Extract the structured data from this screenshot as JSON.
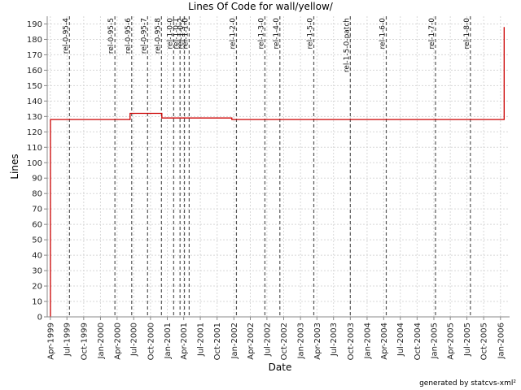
{
  "chart_data": {
    "type": "line",
    "title": "Lines Of Code for wall/yellow/",
    "xlabel": "Date",
    "ylabel": "Lines",
    "credit": "generated by statcvs-xml²",
    "grid": true,
    "ylim": [
      0,
      195
    ],
    "xlim": [
      "1999-03-15",
      "2006-02-20"
    ],
    "yticks": [
      0,
      10,
      20,
      30,
      40,
      50,
      60,
      70,
      80,
      90,
      100,
      110,
      120,
      130,
      140,
      150,
      160,
      170,
      180,
      190
    ],
    "xticks": [
      "1999-04-01",
      "1999-07-01",
      "1999-10-01",
      "2000-01-01",
      "2000-04-01",
      "2000-07-01",
      "2000-10-01",
      "2001-01-01",
      "2001-04-01",
      "2001-07-01",
      "2001-10-01",
      "2002-01-01",
      "2002-04-01",
      "2002-07-01",
      "2002-10-01",
      "2003-01-01",
      "2003-04-01",
      "2003-07-01",
      "2003-10-01",
      "2004-01-01",
      "2004-04-01",
      "2004-07-01",
      "2004-10-01",
      "2005-01-01",
      "2005-04-01",
      "2005-07-01",
      "2005-10-01",
      "2006-01-01"
    ],
    "xtick_labels": [
      "Apr-1999",
      "Jul-1999",
      "Oct-1999",
      "Jan-2000",
      "Apr-2000",
      "Jul-2000",
      "Oct-2000",
      "Jan-2001",
      "Apr-2001",
      "Jul-2001",
      "Oct-2001",
      "Jan-2002",
      "Apr-2002",
      "Jul-2002",
      "Oct-2002",
      "Jan-2003",
      "Apr-2003",
      "Jul-2003",
      "Oct-2003",
      "Jan-2004",
      "Apr-2004",
      "Jul-2004",
      "Oct-2004",
      "Jan-2005",
      "Apr-2005",
      "Jul-2005",
      "Oct-2005",
      "Jan-2006"
    ],
    "series": [
      {
        "color": "#cc0000",
        "step": true,
        "points": [
          [
            "1999-04-01",
            0
          ],
          [
            "1999-04-02",
            128
          ],
          [
            "2000-06-10",
            128
          ],
          [
            "2000-06-11",
            132
          ],
          [
            "2000-12-01",
            132
          ],
          [
            "2000-12-02",
            129
          ],
          [
            "2001-12-20",
            129
          ],
          [
            "2001-12-21",
            128
          ],
          [
            "2006-01-20",
            128
          ],
          [
            "2006-01-21",
            188
          ]
        ]
      }
    ],
    "markers": [
      {
        "label": "rel-0-95-4",
        "date": "1999-07-15"
      },
      {
        "label": "rel-0-95-5",
        "date": "2000-03-20"
      },
      {
        "label": "rel-0-95-6",
        "date": "2000-06-20"
      },
      {
        "label": "rel-0-95-7",
        "date": "2000-09-15"
      },
      {
        "label": "rel-0-95-8",
        "date": "2000-11-30"
      },
      {
        "label": "rel-1-0-0",
        "date": "2001-02-05"
      },
      {
        "label": "rel-1-0-1",
        "date": "2001-03-12"
      },
      {
        "label": "rel-1-0-2",
        "date": "2001-04-05"
      },
      {
        "label": "rel-1-1-0",
        "date": "2001-05-01"
      },
      {
        "label": "rel-1-2-0",
        "date": "2002-01-15"
      },
      {
        "label": "rel-1-3-0",
        "date": "2002-06-20"
      },
      {
        "label": "rel-1-4-0",
        "date": "2002-09-10"
      },
      {
        "label": "rel-1-5-0",
        "date": "2003-03-15"
      },
      {
        "label": "rel-1-5-0-patch",
        "date": "2003-10-01"
      },
      {
        "label": "rel-1-6-0",
        "date": "2004-04-15"
      },
      {
        "label": "rel-1-7-0",
        "date": "2005-01-10"
      },
      {
        "label": "rel-1-8-0",
        "date": "2005-07-20"
      }
    ]
  }
}
